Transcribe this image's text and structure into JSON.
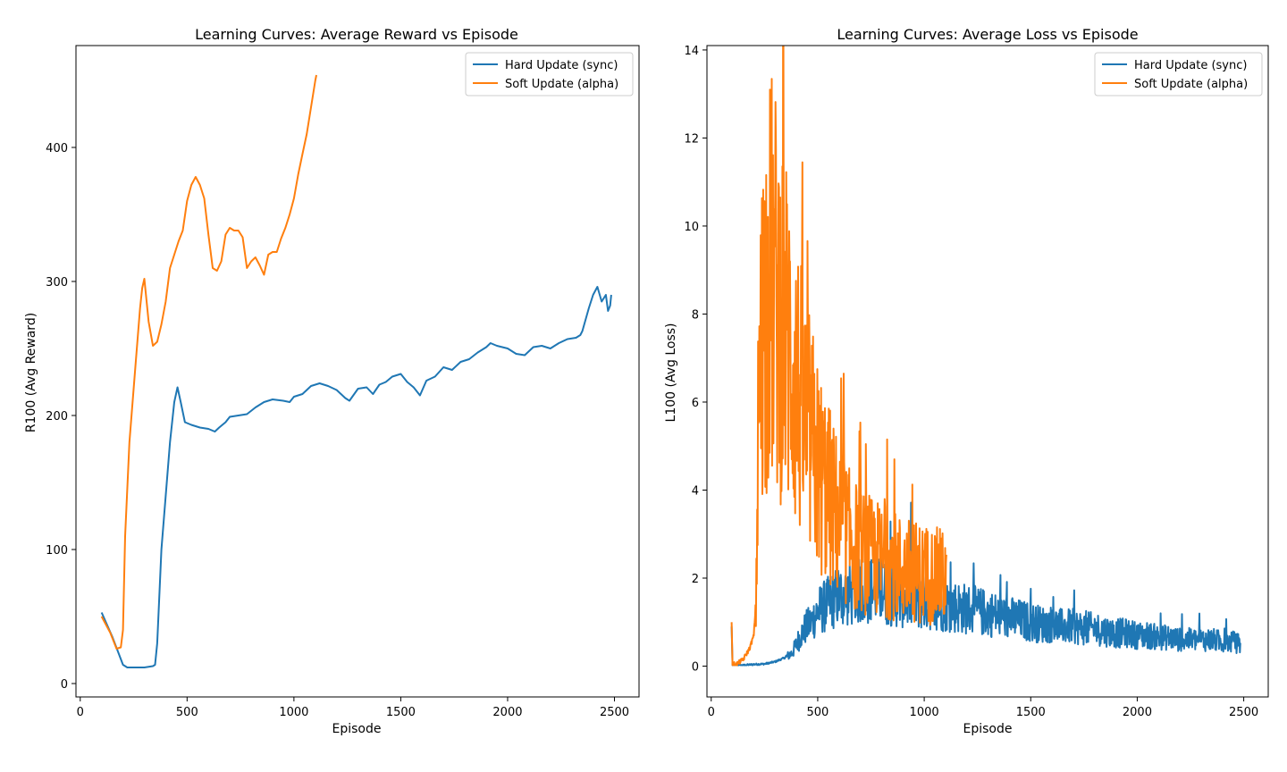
{
  "chart_data": [
    {
      "type": "line",
      "title": "Learning Curves: Average Reward vs Episode",
      "xlabel": "Episode",
      "ylabel": "R100 (Avg Reward)",
      "xlim": [
        -20,
        2615
      ],
      "ylim": [
        -10,
        476
      ],
      "xticks": [
        0,
        500,
        1000,
        1500,
        2000,
        2500
      ],
      "yticks": [
        0,
        100,
        200,
        300,
        400
      ],
      "grid": false,
      "legend_position": "top-right",
      "series": [
        {
          "name": "Hard Update (sync)",
          "color": "#1f77b4",
          "points": [
            [
              100,
              53
            ],
            [
              150,
              35
            ],
            [
              200,
              14
            ],
            [
              220,
              12
            ],
            [
              250,
              12
            ],
            [
              300,
              12
            ],
            [
              340,
              13
            ],
            [
              350,
              14
            ],
            [
              360,
              30
            ],
            [
              380,
              100
            ],
            [
              400,
              140
            ],
            [
              420,
              180
            ],
            [
              440,
              210
            ],
            [
              455,
              221
            ],
            [
              470,
              210
            ],
            [
              490,
              195
            ],
            [
              520,
              193
            ],
            [
              560,
              191
            ],
            [
              600,
              190
            ],
            [
              630,
              188
            ],
            [
              650,
              191
            ],
            [
              680,
              195
            ],
            [
              700,
              199
            ],
            [
              740,
              200
            ],
            [
              780,
              201
            ],
            [
              820,
              206
            ],
            [
              860,
              210
            ],
            [
              900,
              212
            ],
            [
              950,
              211
            ],
            [
              980,
              210
            ],
            [
              1000,
              214
            ],
            [
              1040,
              216
            ],
            [
              1080,
              222
            ],
            [
              1120,
              224
            ],
            [
              1160,
              222
            ],
            [
              1200,
              219
            ],
            [
              1240,
              213
            ],
            [
              1260,
              211
            ],
            [
              1300,
              220
            ],
            [
              1340,
              221
            ],
            [
              1370,
              216
            ],
            [
              1400,
              223
            ],
            [
              1430,
              225
            ],
            [
              1460,
              229
            ],
            [
              1500,
              231
            ],
            [
              1530,
              225
            ],
            [
              1560,
              221
            ],
            [
              1590,
              215
            ],
            [
              1620,
              226
            ],
            [
              1660,
              229
            ],
            [
              1700,
              236
            ],
            [
              1740,
              234
            ],
            [
              1780,
              240
            ],
            [
              1820,
              242
            ],
            [
              1860,
              247
            ],
            [
              1900,
              251
            ],
            [
              1920,
              254
            ],
            [
              1950,
              252
            ],
            [
              2000,
              250
            ],
            [
              2040,
              246
            ],
            [
              2080,
              245
            ],
            [
              2120,
              251
            ],
            [
              2160,
              252
            ],
            [
              2200,
              250
            ],
            [
              2240,
              254
            ],
            [
              2280,
              257
            ],
            [
              2320,
              258
            ],
            [
              2340,
              260
            ],
            [
              2350,
              263
            ],
            [
              2380,
              280
            ],
            [
              2400,
              290
            ],
            [
              2420,
              296
            ],
            [
              2440,
              285
            ],
            [
              2460,
              290
            ],
            [
              2470,
              278
            ],
            [
              2480,
              282
            ],
            [
              2485,
              290
            ]
          ]
        },
        {
          "name": "Soft Update (alpha)",
          "color": "#ff7f0e",
          "points": [
            [
              100,
              50
            ],
            [
              140,
              38
            ],
            [
              170,
              26
            ],
            [
              190,
              27
            ],
            [
              200,
              40
            ],
            [
              210,
              110
            ],
            [
              230,
              180
            ],
            [
              260,
              240
            ],
            [
              280,
              280
            ],
            [
              290,
              295
            ],
            [
              300,
              302
            ],
            [
              320,
              270
            ],
            [
              340,
              252
            ],
            [
              360,
              255
            ],
            [
              380,
              268
            ],
            [
              400,
              285
            ],
            [
              420,
              310
            ],
            [
              440,
              320
            ],
            [
              460,
              330
            ],
            [
              480,
              338
            ],
            [
              500,
              360
            ],
            [
              520,
              372
            ],
            [
              540,
              378
            ],
            [
              560,
              372
            ],
            [
              580,
              362
            ],
            [
              600,
              335
            ],
            [
              620,
              310
            ],
            [
              640,
              308
            ],
            [
              660,
              315
            ],
            [
              680,
              335
            ],
            [
              700,
              340
            ],
            [
              720,
              338
            ],
            [
              740,
              338
            ],
            [
              760,
              333
            ],
            [
              780,
              310
            ],
            [
              800,
              315
            ],
            [
              820,
              318
            ],
            [
              840,
              312
            ],
            [
              860,
              305
            ],
            [
              880,
              320
            ],
            [
              900,
              322
            ],
            [
              920,
              322
            ],
            [
              940,
              332
            ],
            [
              960,
              340
            ],
            [
              980,
              350
            ],
            [
              1000,
              362
            ],
            [
              1020,
              380
            ],
            [
              1040,
              395
            ],
            [
              1060,
              410
            ],
            [
              1080,
              430
            ],
            [
              1100,
              450
            ],
            [
              1105,
              454
            ]
          ]
        }
      ]
    },
    {
      "type": "line",
      "title": "Learning Curves: Average Loss vs Episode",
      "xlabel": "Episode",
      "ylabel": "L100 (Avg Loss)",
      "xlim": [
        -20,
        2615
      ],
      "ylim": [
        -0.7,
        14.1
      ],
      "xticks": [
        0,
        500,
        1000,
        1500,
        2000,
        2500
      ],
      "yticks": [
        0,
        2,
        4,
        6,
        8,
        10,
        12,
        14
      ],
      "grid": false,
      "legend_position": "top-right",
      "series": [
        {
          "name": "Hard Update (sync)",
          "color": "#1f77b4",
          "points": [
            [
              96,
              0.9
            ],
            [
              100,
              0.02
            ],
            [
              110,
              0.02
            ],
            [
              150,
              0.02
            ],
            [
              200,
              0.04
            ],
            [
              250,
              0.05
            ],
            [
              300,
              0.1
            ],
            [
              350,
              0.2
            ],
            [
              380,
              0.3
            ],
            [
              400,
              0.5
            ],
            [
              420,
              0.7
            ],
            [
              440,
              0.85
            ],
            [
              470,
              1.0
            ],
            [
              500,
              1.25
            ],
            [
              530,
              1.35
            ],
            [
              560,
              1.45
            ],
            [
              600,
              1.6
            ],
            [
              650,
              1.6
            ],
            [
              700,
              1.7
            ],
            [
              750,
              1.75
            ],
            [
              800,
              1.7
            ],
            [
              850,
              1.6
            ],
            [
              900,
              1.55
            ],
            [
              950,
              1.5
            ],
            [
              1000,
              1.45
            ],
            [
              1050,
              1.45
            ],
            [
              1100,
              1.4
            ],
            [
              1150,
              1.35
            ],
            [
              1200,
              1.3
            ],
            [
              1250,
              1.25
            ],
            [
              1300,
              1.2
            ],
            [
              1350,
              1.15
            ],
            [
              1400,
              1.1
            ],
            [
              1450,
              1.05
            ],
            [
              1500,
              1.0
            ],
            [
              1550,
              0.95
            ],
            [
              1600,
              0.95
            ],
            [
              1650,
              0.9
            ],
            [
              1700,
              0.9
            ],
            [
              1750,
              0.85
            ],
            [
              1800,
              0.85
            ],
            [
              1850,
              0.8
            ],
            [
              1900,
              0.75
            ],
            [
              1950,
              0.75
            ],
            [
              2000,
              0.7
            ],
            [
              2050,
              0.7
            ],
            [
              2100,
              0.65
            ],
            [
              2150,
              0.65
            ],
            [
              2200,
              0.6
            ],
            [
              2250,
              0.6
            ],
            [
              2300,
              0.6
            ],
            [
              2350,
              0.6
            ],
            [
              2400,
              0.55
            ],
            [
              2450,
              0.55
            ],
            [
              2485,
              0.5
            ]
          ]
        },
        {
          "name": "Soft Update (alpha)",
          "color": "#ff7f0e",
          "points": [
            [
              96,
              1.0
            ],
            [
              100,
              0.05
            ],
            [
              120,
              0.05
            ],
            [
              150,
              0.15
            ],
            [
              180,
              0.4
            ],
            [
              200,
              0.7
            ],
            [
              210,
              1.5
            ],
            [
              215,
              3.0
            ],
            [
              220,
              5.0
            ],
            [
              230,
              6.5
            ],
            [
              240,
              7.8
            ],
            [
              260,
              8.5
            ],
            [
              280,
              8.8
            ],
            [
              300,
              8.5
            ],
            [
              320,
              8.2
            ],
            [
              350,
              7.6
            ],
            [
              380,
              7.0
            ],
            [
              400,
              6.4
            ],
            [
              420,
              6.0
            ],
            [
              450,
              5.4
            ],
            [
              480,
              4.9
            ],
            [
              500,
              4.5
            ],
            [
              550,
              3.9
            ],
            [
              600,
              3.3
            ],
            [
              650,
              2.9
            ],
            [
              700,
              2.6
            ],
            [
              750,
              2.5
            ],
            [
              800,
              2.4
            ],
            [
              850,
              2.3
            ],
            [
              900,
              2.2
            ],
            [
              950,
              2.15
            ],
            [
              1000,
              2.1
            ],
            [
              1050,
              2.05
            ],
            [
              1105,
              2.0
            ]
          ]
        }
      ]
    }
  ]
}
